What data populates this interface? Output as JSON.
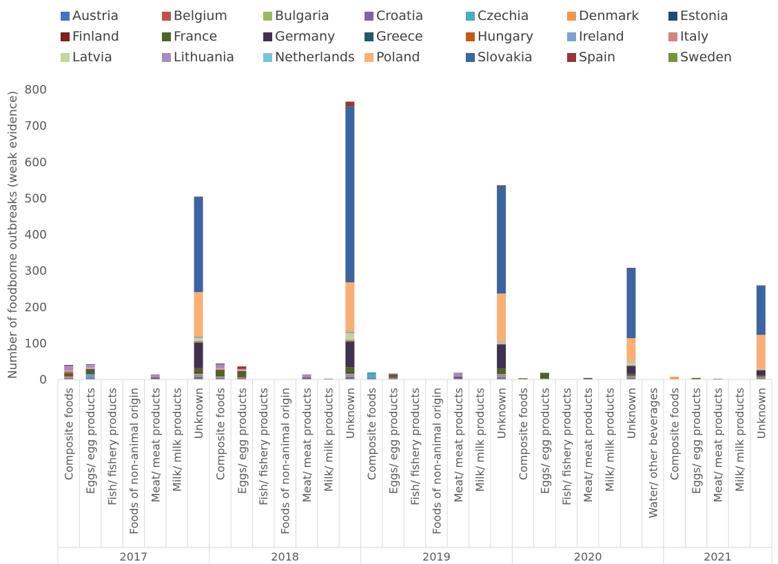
{
  "chart_data": {
    "type": "bar",
    "stacked": true,
    "title": "",
    "xlabel": "",
    "ylabel": "Number of foodborne outbreaks (weak evidence)",
    "ylim": [
      0,
      800
    ],
    "yticks": [
      0,
      100,
      200,
      300,
      400,
      500,
      600,
      700,
      800
    ],
    "grid": false,
    "legend_position": "top",
    "groups": [
      {
        "label": "2017",
        "categories": [
          "Composite foods",
          "Eggs/ egg products",
          "Fish/ fishery products",
          "Foods of non-animal origin",
          "Meat/ meat products",
          "Milk/ milk products",
          "Unknown"
        ]
      },
      {
        "label": "2018",
        "categories": [
          "Composite foods",
          "Eggs/ egg products",
          "Fish/ fishery products",
          "Foods of non-animal origin",
          "Meat/ meat products",
          "Milk/ milk products",
          "Unknown"
        ]
      },
      {
        "label": "2019",
        "categories": [
          "Composite foods",
          "Eggs/ egg products",
          "Fish/ fishery products",
          "Foods of non-animal origin",
          "Meat/ meat products",
          "Milk/ milk products",
          "Unknown"
        ]
      },
      {
        "label": "2020",
        "categories": [
          "Composite foods",
          "Eggs/ egg products",
          "Fish/ fishery products",
          "Meat/ meat products",
          "Milk/ milk products",
          "Unknown",
          "Water/ other beverages"
        ]
      },
      {
        "label": "2021",
        "categories": [
          "Composite foods",
          "Eggs/ egg products",
          "Meat/ meat products",
          "Milk/ milk products",
          "Unknown"
        ]
      }
    ],
    "series": [
      {
        "name": "Austria",
        "color": "#4472C4",
        "values": [
          2,
          3,
          0,
          0,
          1,
          0,
          5,
          2,
          2,
          0,
          0,
          1,
          0,
          5,
          2,
          2,
          0,
          0,
          1,
          0,
          5,
          0,
          0,
          0,
          0,
          0,
          3,
          0,
          0,
          0,
          0,
          0,
          2
        ]
      },
      {
        "name": "Belgium",
        "color": "#C0504D",
        "values": [
          2,
          2,
          0,
          0,
          1,
          0,
          3,
          2,
          2,
          0,
          0,
          1,
          0,
          3,
          1,
          1,
          0,
          0,
          1,
          0,
          2,
          0,
          0,
          0,
          0,
          0,
          2,
          0,
          0,
          0,
          0,
          0,
          1
        ]
      },
      {
        "name": "Bulgaria",
        "color": "#9BBB59",
        "values": [
          1,
          1,
          0,
          0,
          0,
          0,
          2,
          1,
          1,
          0,
          0,
          0,
          0,
          2,
          0,
          1,
          0,
          0,
          0,
          0,
          2,
          0,
          2,
          0,
          0,
          0,
          1,
          0,
          0,
          1,
          0,
          0,
          1
        ]
      },
      {
        "name": "Croatia",
        "color": "#8064A2",
        "values": [
          1,
          1,
          0,
          0,
          1,
          0,
          2,
          1,
          1,
          0,
          0,
          1,
          0,
          2,
          1,
          1,
          0,
          0,
          1,
          0,
          2,
          0,
          0,
          0,
          0,
          0,
          1,
          0,
          0,
          0,
          0,
          0,
          1
        ]
      },
      {
        "name": "Czechia",
        "color": "#4BACC6",
        "values": [
          1,
          8,
          0,
          0,
          0,
          0,
          2,
          1,
          0,
          0,
          0,
          0,
          0,
          2,
          14,
          0,
          0,
          0,
          0,
          0,
          2,
          0,
          0,
          0,
          0,
          0,
          1,
          0,
          0,
          0,
          0,
          0,
          1
        ]
      },
      {
        "name": "Denmark",
        "color": "#F79646",
        "values": [
          1,
          0,
          0,
          0,
          0,
          0,
          2,
          1,
          0,
          0,
          0,
          0,
          0,
          2,
          0,
          0,
          0,
          0,
          0,
          0,
          2,
          0,
          0,
          0,
          0,
          0,
          1,
          0,
          6,
          0,
          0,
          0,
          1
        ]
      },
      {
        "name": "Estonia",
        "color": "#1F497D",
        "values": [
          0,
          1,
          0,
          0,
          0,
          0,
          1,
          0,
          0,
          0,
          0,
          0,
          0,
          1,
          0,
          0,
          0,
          0,
          0,
          0,
          1,
          0,
          0,
          0,
          0,
          0,
          1,
          0,
          0,
          0,
          0,
          0,
          0
        ]
      },
      {
        "name": "Finland",
        "color": "#7F1F1F",
        "values": [
          1,
          1,
          0,
          0,
          0,
          0,
          2,
          1,
          1,
          0,
          0,
          0,
          0,
          2,
          0,
          1,
          0,
          0,
          0,
          0,
          1,
          0,
          0,
          0,
          0,
          0,
          1,
          0,
          0,
          0,
          0,
          0,
          1
        ]
      },
      {
        "name": "France",
        "color": "#4F6228",
        "values": [
          5,
          8,
          1,
          1,
          0,
          0,
          12,
          15,
          13,
          0,
          0,
          0,
          2,
          15,
          0,
          6,
          0,
          0,
          2,
          0,
          13,
          3,
          15,
          1,
          3,
          1,
          5,
          0,
          0,
          3,
          2,
          0,
          3
        ]
      },
      {
        "name": "Germany",
        "color": "#403151",
        "values": [
          2,
          3,
          0,
          0,
          2,
          0,
          70,
          2,
          2,
          0,
          0,
          2,
          0,
          70,
          1,
          2,
          0,
          0,
          2,
          0,
          65,
          0,
          1,
          0,
          1,
          0,
          20,
          0,
          0,
          0,
          0,
          0,
          14
        ]
      },
      {
        "name": "Greece",
        "color": "#215967",
        "values": [
          0,
          0,
          0,
          0,
          0,
          0,
          1,
          0,
          0,
          0,
          0,
          0,
          0,
          1,
          0,
          0,
          0,
          0,
          0,
          0,
          1,
          0,
          0,
          0,
          0,
          0,
          1,
          0,
          0,
          0,
          0,
          0,
          0
        ]
      },
      {
        "name": "Hungary",
        "color": "#C55A11",
        "values": [
          4,
          1,
          0,
          0,
          0,
          0,
          2,
          1,
          1,
          0,
          0,
          0,
          0,
          2,
          0,
          1,
          0,
          0,
          0,
          0,
          1,
          0,
          0,
          0,
          0,
          0,
          1,
          0,
          0,
          0,
          0,
          0,
          1
        ]
      },
      {
        "name": "Ireland",
        "color": "#7F9FD1",
        "values": [
          0,
          1,
          0,
          0,
          0,
          0,
          1,
          0,
          0,
          0,
          0,
          0,
          0,
          1,
          0,
          0,
          0,
          0,
          0,
          0,
          1,
          0,
          0,
          0,
          0,
          0,
          0,
          0,
          0,
          0,
          0,
          0,
          0
        ]
      },
      {
        "name": "Italy",
        "color": "#D48482",
        "values": [
          3,
          2,
          0,
          0,
          0,
          0,
          2,
          3,
          2,
          0,
          0,
          0,
          0,
          2,
          0,
          0,
          0,
          0,
          0,
          0,
          1,
          0,
          0,
          0,
          0,
          0,
          1,
          0,
          0,
          0,
          0,
          0,
          1
        ]
      },
      {
        "name": "Latvia",
        "color": "#C3D69B",
        "values": [
          1,
          1,
          0,
          0,
          0,
          0,
          8,
          1,
          1,
          0,
          0,
          0,
          0,
          18,
          0,
          1,
          0,
          0,
          0,
          0,
          3,
          1,
          1,
          0,
          0,
          0,
          8,
          0,
          0,
          1,
          0,
          0,
          1
        ]
      },
      {
        "name": "Lithuania",
        "color": "#A48CC0",
        "values": [
          12,
          5,
          0,
          0,
          9,
          0,
          3,
          9,
          3,
          0,
          0,
          9,
          0,
          3,
          0,
          1,
          0,
          0,
          12,
          0,
          2,
          0,
          0,
          0,
          0,
          0,
          1,
          0,
          0,
          0,
          0,
          0,
          1
        ]
      },
      {
        "name": "Netherlands",
        "color": "#78C4DA",
        "values": [
          0,
          1,
          0,
          0,
          0,
          1,
          1,
          0,
          0,
          0,
          0,
          0,
          0,
          1,
          0,
          0,
          0,
          0,
          0,
          0,
          1,
          0,
          0,
          0,
          0,
          0,
          1,
          0,
          0,
          0,
          0,
          0,
          1
        ]
      },
      {
        "name": "Poland",
        "color": "#FAAF75",
        "values": [
          1,
          1,
          0,
          0,
          0,
          0,
          122,
          1,
          0,
          0,
          0,
          0,
          0,
          136,
          0,
          0,
          0,
          0,
          0,
          0,
          132,
          0,
          0,
          0,
          0,
          0,
          65,
          0,
          2,
          0,
          0,
          0,
          93
        ]
      },
      {
        "name": "Slovakia",
        "color": "#3C64A0",
        "values": [
          1,
          1,
          0,
          0,
          0,
          0,
          262,
          1,
          0,
          0,
          0,
          0,
          0,
          485,
          0,
          0,
          0,
          0,
          0,
          0,
          295,
          0,
          0,
          0,
          0,
          0,
          193,
          0,
          0,
          0,
          0,
          0,
          135
        ]
      },
      {
        "name": "Spain",
        "color": "#9C3535",
        "values": [
          2,
          1,
          0,
          0,
          0,
          0,
          1,
          2,
          7,
          0,
          0,
          0,
          0,
          13,
          0,
          0,
          0,
          0,
          0,
          0,
          3,
          0,
          0,
          0,
          0,
          0,
          1,
          0,
          0,
          0,
          0,
          0,
          1
        ]
      },
      {
        "name": "Sweden",
        "color": "#77933C",
        "values": [
          0,
          0,
          0,
          0,
          0,
          0,
          1,
          0,
          0,
          0,
          0,
          0,
          0,
          1,
          0,
          0,
          0,
          0,
          0,
          0,
          1,
          0,
          0,
          0,
          0,
          0,
          0,
          0,
          0,
          0,
          0,
          0,
          1
        ]
      }
    ]
  }
}
